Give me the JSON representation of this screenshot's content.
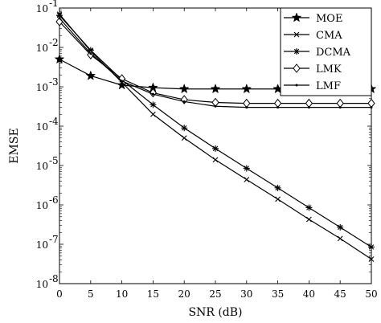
{
  "chart_data": {
    "type": "line",
    "xlabel": "SNR (dB)",
    "ylabel": "EMSE",
    "xlim": [
      0,
      50
    ],
    "ylim": [
      1e-08,
      0.1
    ],
    "yscale": "log",
    "grid": false,
    "legend_position": "top-right",
    "x": [
      0,
      5,
      10,
      15,
      20,
      25,
      30,
      35,
      40,
      45,
      50
    ],
    "x_ticks": [
      0,
      5,
      10,
      15,
      20,
      25,
      30,
      35,
      40,
      45,
      50
    ],
    "y_tick_exponents": [
      -8,
      -7,
      -6,
      -5,
      -4,
      -3,
      -2,
      -1
    ],
    "series": [
      {
        "name": "MOE",
        "marker": "star",
        "values": [
          0.005,
          0.0019,
          0.0011,
          0.00095,
          0.00088,
          0.00088,
          0.00088,
          0.00088,
          0.00088,
          0.00088,
          0.00088
        ]
      },
      {
        "name": "CMA",
        "marker": "x",
        "values": [
          0.07,
          0.008,
          0.0013,
          0.0002,
          5e-05,
          1.4e-05,
          4.4e-06,
          1.4e-06,
          4.3e-07,
          1.4e-07,
          4.2e-08
        ]
      },
      {
        "name": "DCMA",
        "marker": "asterisk",
        "values": [
          0.065,
          0.0085,
          0.0015,
          0.00035,
          9e-05,
          2.7e-05,
          8.5e-06,
          2.7e-06,
          8.5e-07,
          2.7e-07,
          8.5e-08
        ]
      },
      {
        "name": "LMK",
        "marker": "diamond",
        "values": [
          0.045,
          0.0065,
          0.0016,
          0.0007,
          0.00047,
          0.0004,
          0.00038,
          0.00038,
          0.00038,
          0.00038,
          0.00038
        ]
      },
      {
        "name": "LMF",
        "marker": "dot",
        "values": [
          0.055,
          0.007,
          0.0014,
          0.00065,
          0.00042,
          0.00032,
          0.0003,
          0.0003,
          0.0003,
          0.0003,
          0.0003
        ]
      }
    ]
  }
}
